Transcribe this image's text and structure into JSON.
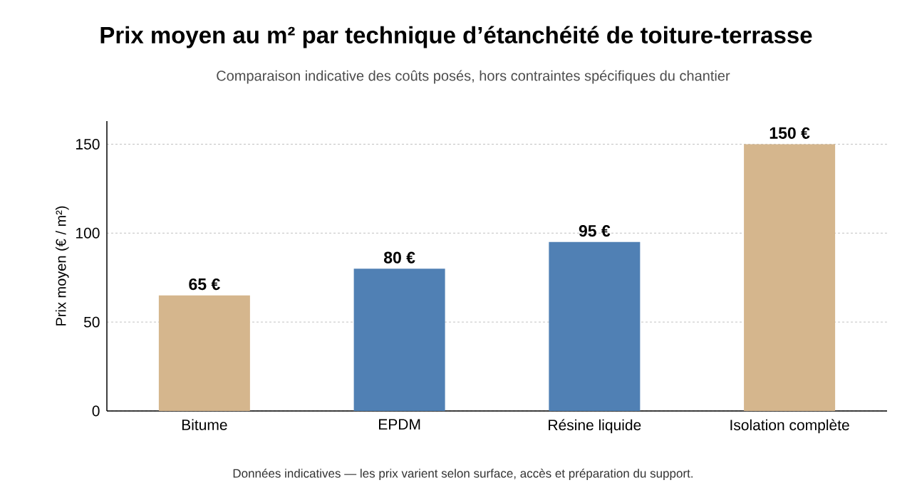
{
  "chart_data": {
    "type": "bar",
    "title": "Prix moyen au m² par technique d’étanchéité de toiture-terrasse",
    "subtitle": "Comparaison indicative des coûts posés, hors contraintes spécifiques du chantier",
    "ylabel": "Prix moyen (€ / m²)",
    "categories": [
      "Bitume",
      "EPDM",
      "Résine liquide",
      "Isolation complète"
    ],
    "values": [
      65,
      80,
      95,
      150
    ],
    "colors": [
      "#d5b68d",
      "#5080b4",
      "#5080b4",
      "#d5b68d"
    ],
    "value_labels": [
      "65 €",
      "80 €",
      "95 €",
      "150 €"
    ],
    "ylim": [
      0,
      163
    ],
    "yticks": [
      0,
      50,
      100,
      150
    ],
    "grid": "y",
    "annotations": [
      "Données indicatives — les prix varient selon surface, accès et préparation du support."
    ]
  }
}
